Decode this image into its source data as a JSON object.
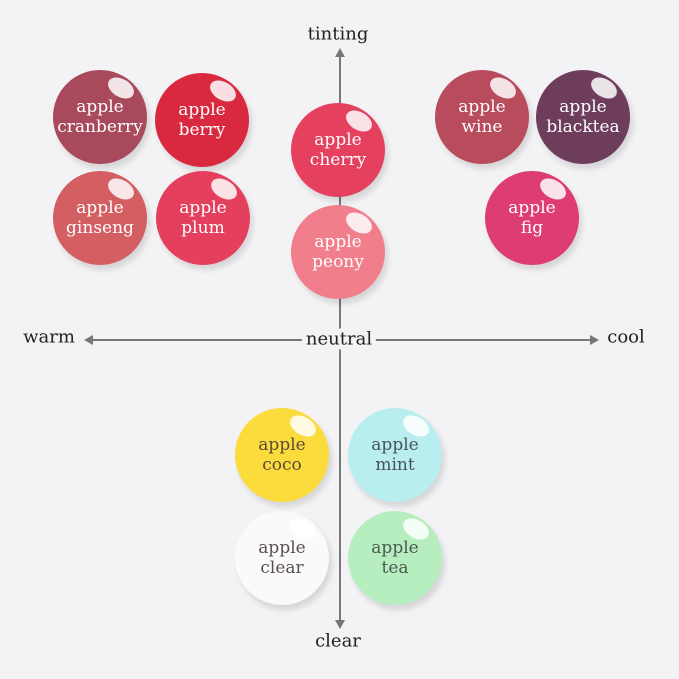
{
  "axes": {
    "top": "tinting",
    "bottom": "clear",
    "left": "warm",
    "right": "cool",
    "center": "neutral"
  },
  "items": [
    {
      "line1": "apple",
      "line2": "cranberry",
      "color": "#a94a5c",
      "text": "#fff"
    },
    {
      "line1": "apple",
      "line2": "berry",
      "color": "#d8293f",
      "text": "#fff"
    },
    {
      "line1": "apple",
      "line2": "ginseng",
      "color": "#d45f62",
      "text": "#fff"
    },
    {
      "line1": "apple",
      "line2": "plum",
      "color": "#e43f5c",
      "text": "#fff"
    },
    {
      "line1": "apple",
      "line2": "cherry",
      "color": "#e5405e",
      "text": "#fff"
    },
    {
      "line1": "apple",
      "line2": "peony",
      "color": "#f17e8b",
      "text": "#fff"
    },
    {
      "line1": "apple",
      "line2": "wine",
      "color": "#b84b5c",
      "text": "#fff"
    },
    {
      "line1": "apple",
      "line2": "blacktea",
      "color": "#6e3d5c",
      "text": "#fff"
    },
    {
      "line1": "apple",
      "line2": "fig",
      "color": "#de3c74",
      "text": "#fff"
    },
    {
      "line1": "apple",
      "line2": "coco",
      "color": "#fbdc3c",
      "text": "#5a4a3a"
    },
    {
      "line1": "apple",
      "line2": "mint",
      "color": "#b9eef0",
      "text": "#4a5258"
    },
    {
      "line1": "apple",
      "line2": "clear",
      "color": "#fafafa",
      "text": "#5a4e52"
    },
    {
      "line1": "apple",
      "line2": "tea",
      "color": "#b6eec0",
      "text": "#4a5a4e"
    }
  ]
}
